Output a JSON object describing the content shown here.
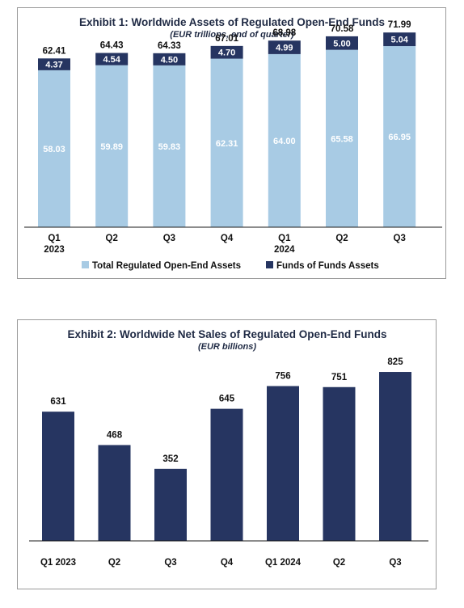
{
  "colors": {
    "total": "#a8cbe4",
    "fof": "#263561",
    "bar2": "#263561",
    "axis": "#1a1a1a"
  },
  "chart_data": [
    {
      "type": "bar",
      "stacked": true,
      "title": "Exhibit 1: Worldwide Assets of Regulated Open-End Funds",
      "subtitle": "(EUR trillions, end of quarter)",
      "categories": [
        [
          "Q1",
          "2023"
        ],
        [
          "Q2",
          ""
        ],
        [
          "Q3",
          ""
        ],
        [
          "Q4",
          ""
        ],
        [
          "Q1",
          "2024"
        ],
        [
          "Q2",
          ""
        ],
        [
          "Q3",
          ""
        ]
      ],
      "series": [
        {
          "name": "Total Regulated Open-End Assets",
          "values": [
            58.03,
            59.89,
            59.83,
            62.31,
            64.0,
            65.58,
            66.95
          ]
        },
        {
          "name": "Funds of Funds Assets",
          "values": [
            4.37,
            4.54,
            4.5,
            4.7,
            4.99,
            5.0,
            5.04
          ]
        }
      ],
      "totals": [
        "62.41",
        "64.43",
        "64.33",
        "67.01",
        "68.98",
        "70.58",
        "71.99"
      ],
      "value_labels": {
        "total": [
          "58.03",
          "59.89",
          "59.83",
          "62.31",
          "64.00",
          "65.58",
          "66.95"
        ],
        "fof": [
          "4.37",
          "4.54",
          "4.50",
          "4.70",
          "4.99",
          "5.00",
          "5.04"
        ]
      },
      "ylim": [
        0,
        74
      ],
      "legend": "bottom",
      "grid": false
    },
    {
      "type": "bar",
      "title": "Exhibit 2: Worldwide Net Sales of Regulated Open-End Funds",
      "subtitle": "(EUR billions)",
      "categories": [
        "Q1 2023",
        "Q2",
        "Q3",
        "Q4",
        "Q1 2024",
        "Q2",
        "Q3"
      ],
      "values": [
        631,
        468,
        352,
        645,
        756,
        751,
        825
      ],
      "value_labels": [
        "631",
        "468",
        "352",
        "645",
        "756",
        "751",
        "825"
      ],
      "ylim": [
        0,
        870
      ],
      "grid": false
    }
  ]
}
